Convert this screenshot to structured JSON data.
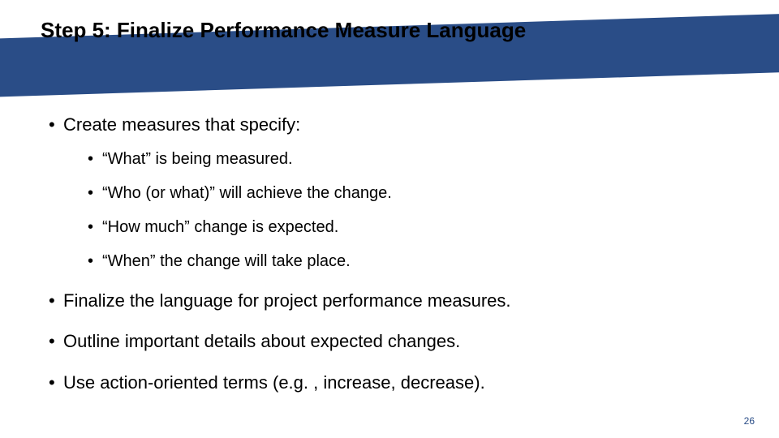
{
  "title": "Step 5: Finalize Performance Measure Language",
  "bullets": {
    "b0": "Create measures that specify:",
    "sub": {
      "s0": "“What” is being measured.",
      "s1": "“Who (or what)” will achieve the change.",
      "s2": "“How much” change is expected.",
      "s3": "“When” the change will take place."
    },
    "b1": "Finalize the language for project performance measures.",
    "b2": "Outline important details about expected changes.",
    "b3": "Use action-oriented terms (e.g. , increase, decrease)."
  },
  "pageNumber": "26",
  "colors": {
    "banner": "#2a4d87",
    "text": "#000000",
    "pageNumColor": "#2a4d87",
    "background": "#ffffff"
  },
  "fonts": {
    "title_size": 26,
    "bullet_size": 22,
    "sub_size": 20,
    "pagenum_size": 12,
    "family": "Arial"
  }
}
